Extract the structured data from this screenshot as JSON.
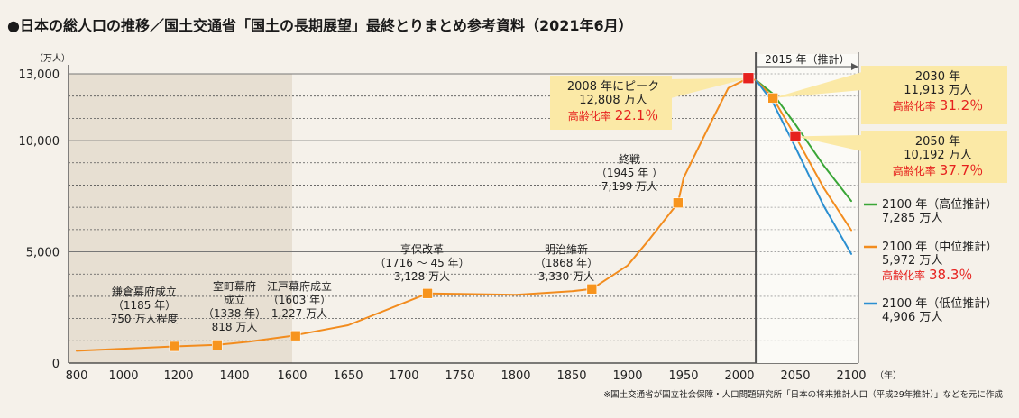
{
  "title": "●日本の総人口の推移／国土交通省「国土の長期展望」最終とりまとめ参考資料（2021年6月）",
  "source_note": "※国土交通省が国立社会保障・人口問題研究所「日本の将来推計人口（平成29年推計）」などを元に作成",
  "colors": {
    "history": "#f28c1e",
    "high": "#3aa637",
    "mid": "#f28c1e",
    "low": "#2b8fd1",
    "marker": "#f7941d",
    "peak": "#e6211e",
    "callout": "#fbe9a6",
    "shade": "#e7dfd2",
    "accent_red": "#e6211e"
  },
  "chart_data": {
    "type": "line",
    "title": "",
    "xlabel": "（年）",
    "ylabel": "（万人）",
    "xlim": [
      800,
      2100
    ],
    "ylim": [
      0,
      13000
    ],
    "x_ticks": [
      800,
      1000,
      1200,
      1400,
      1600,
      1650,
      1700,
      1750,
      1800,
      1850,
      1900,
      1950,
      2000,
      2050,
      2100
    ],
    "x_tick_labels": [
      "800",
      "1000",
      "1200",
      "1400",
      "1600",
      "1650",
      "1700",
      "1750",
      "1800",
      "1850",
      "1900",
      "1950",
      "2000",
      "2050",
      "2100"
    ],
    "y_ticks": [
      0,
      5000,
      10000,
      13000
    ],
    "y_tick_labels": [
      "0",
      "5,000",
      "10,000",
      "13,000"
    ],
    "axis_x_unit": "（年）",
    "axis_y_unit": "（万人）",
    "projection_label": "2015 年（推計）",
    "projection_start": 2015,
    "series": [
      {
        "key": "history",
        "points": [
          [
            800,
            551
          ],
          [
            1000,
            644
          ],
          [
            1185,
            750
          ],
          [
            1338,
            818
          ],
          [
            1450,
            960
          ],
          [
            1600,
            1227
          ],
          [
            1650,
            1700
          ],
          [
            1721,
            3128
          ],
          [
            1750,
            3110
          ],
          [
            1800,
            3065
          ],
          [
            1850,
            3228
          ],
          [
            1868,
            3330
          ],
          [
            1900,
            4385
          ],
          [
            1920,
            5596
          ],
          [
            1945,
            7199
          ],
          [
            1950,
            8320
          ],
          [
            1970,
            10372
          ],
          [
            1990,
            12361
          ],
          [
            2008,
            12808
          ],
          [
            2015,
            12709
          ]
        ]
      },
      {
        "key": "high",
        "points": [
          [
            2015,
            12709
          ],
          [
            2030,
            12101
          ],
          [
            2050,
            10730
          ],
          [
            2075,
            8900
          ],
          [
            2100,
            7285
          ]
        ]
      },
      {
        "key": "mid",
        "points": [
          [
            2015,
            12709
          ],
          [
            2030,
            11913
          ],
          [
            2050,
            10192
          ],
          [
            2075,
            7900
          ],
          [
            2100,
            5972
          ]
        ]
      },
      {
        "key": "low",
        "points": [
          [
            2015,
            12709
          ],
          [
            2030,
            11700
          ],
          [
            2050,
            9700
          ],
          [
            2075,
            7100
          ],
          [
            2100,
            4906
          ]
        ]
      }
    ],
    "markers": [
      {
        "x": 1185,
        "y": 750,
        "kind": "era"
      },
      {
        "x": 1338,
        "y": 818,
        "kind": "era"
      },
      {
        "x": 1603,
        "y": 1227,
        "kind": "era"
      },
      {
        "x": 1721,
        "y": 3128,
        "kind": "era"
      },
      {
        "x": 1868,
        "y": 3330,
        "kind": "era"
      },
      {
        "x": 1945,
        "y": 7199,
        "kind": "era"
      },
      {
        "x": 2008,
        "y": 12808,
        "kind": "peak"
      },
      {
        "x": 2030,
        "y": 11913,
        "kind": "era"
      },
      {
        "x": 2050,
        "y": 10192,
        "kind": "peak"
      }
    ],
    "annotations": [
      {
        "lines": [
          "鎌倉幕府成立",
          "（1185 年）",
          "750 万人程度"
        ]
      },
      {
        "lines": [
          "室町幕府",
          "成立",
          "（1338 年）",
          "818 万人"
        ]
      },
      {
        "lines": [
          "江戸幕府成立",
          "（1603 年）",
          "1,227 万人"
        ]
      },
      {
        "lines": [
          "享保改革",
          "（1716 ～ 45 年）",
          "3,128 万人"
        ]
      },
      {
        "lines": [
          "明治維新",
          "（1868 年）",
          "3,330 万人"
        ]
      },
      {
        "lines": [
          "終戦",
          "（1945 年 ）",
          "7,199 万人"
        ]
      }
    ],
    "callouts": [
      {
        "lines": [
          "2008 年にピーク",
          "12,808 万人"
        ],
        "rate_label": "高齢化率",
        "rate": "22.1％"
      },
      {
        "lines": [
          "2030 年",
          "11,913 万人"
        ],
        "rate_label": "高齢化率",
        "rate": "31.2％"
      },
      {
        "lines": [
          "2050 年",
          "10,192 万人"
        ],
        "rate_label": "高齢化率",
        "rate": "37.7％"
      }
    ],
    "legend": [
      {
        "series": "high",
        "lines": [
          "2100 年（高位推計）",
          "7,285 万人"
        ]
      },
      {
        "series": "mid",
        "lines": [
          "2100 年（中位推計）",
          "5,972 万人"
        ],
        "rate_label": "高齢化率",
        "rate": "38.3％"
      },
      {
        "series": "low",
        "lines": [
          "2100 年（低位推計）",
          "4,906 万人"
        ]
      }
    ]
  }
}
